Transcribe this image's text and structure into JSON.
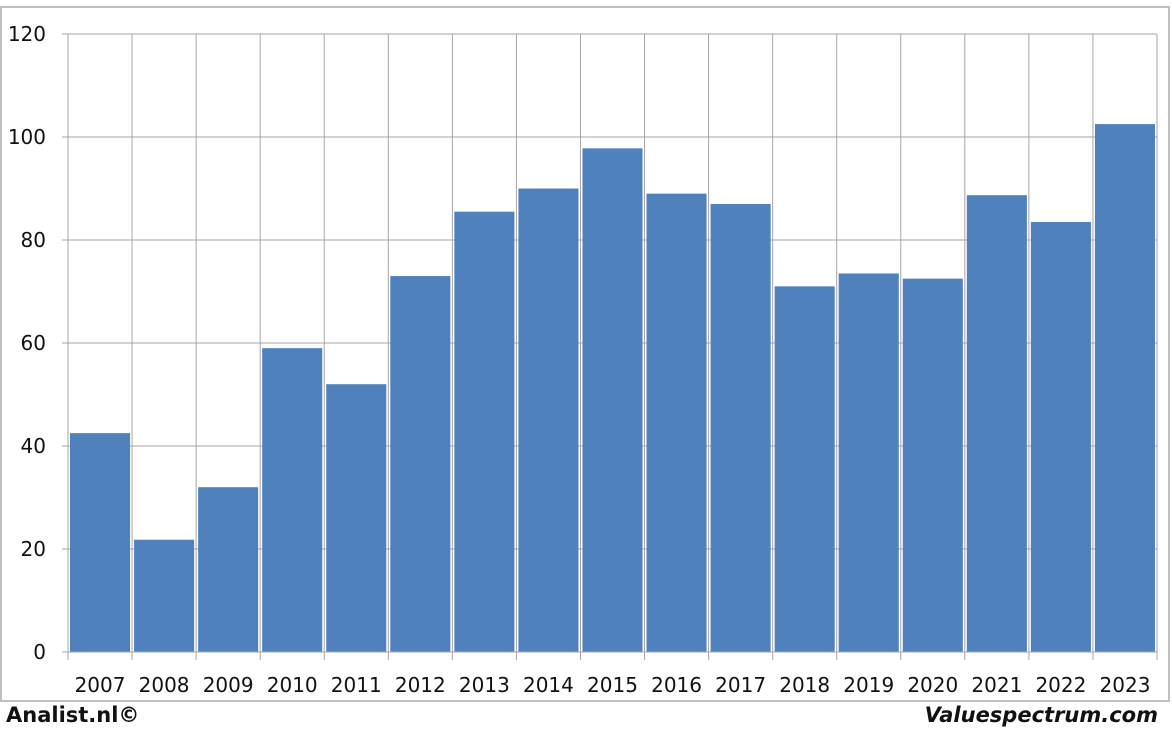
{
  "footer": {
    "left_text": "Analist.nl©",
    "right_text": "Valuespectrum.com"
  },
  "colors": {
    "bar": "#4f81bd",
    "grid": "#a6a6a6",
    "frame": "#bfbfbf"
  },
  "chart_data": {
    "type": "bar",
    "title": "",
    "xlabel": "",
    "ylabel": "",
    "categories": [
      "2007",
      "2008",
      "2009",
      "2010",
      "2011",
      "2012",
      "2013",
      "2014",
      "2015",
      "2016",
      "2017",
      "2018",
      "2019",
      "2020",
      "2021",
      "2022",
      "2023"
    ],
    "values": [
      42.5,
      21.8,
      32,
      59,
      52,
      73,
      85.5,
      90,
      97.8,
      89,
      87,
      71,
      73.5,
      72.5,
      88.7,
      83.5,
      102.5
    ],
    "ylim": [
      0,
      120
    ],
    "yticks": [
      0,
      20,
      40,
      60,
      80,
      100,
      120
    ],
    "grid": true,
    "legend": "none"
  }
}
